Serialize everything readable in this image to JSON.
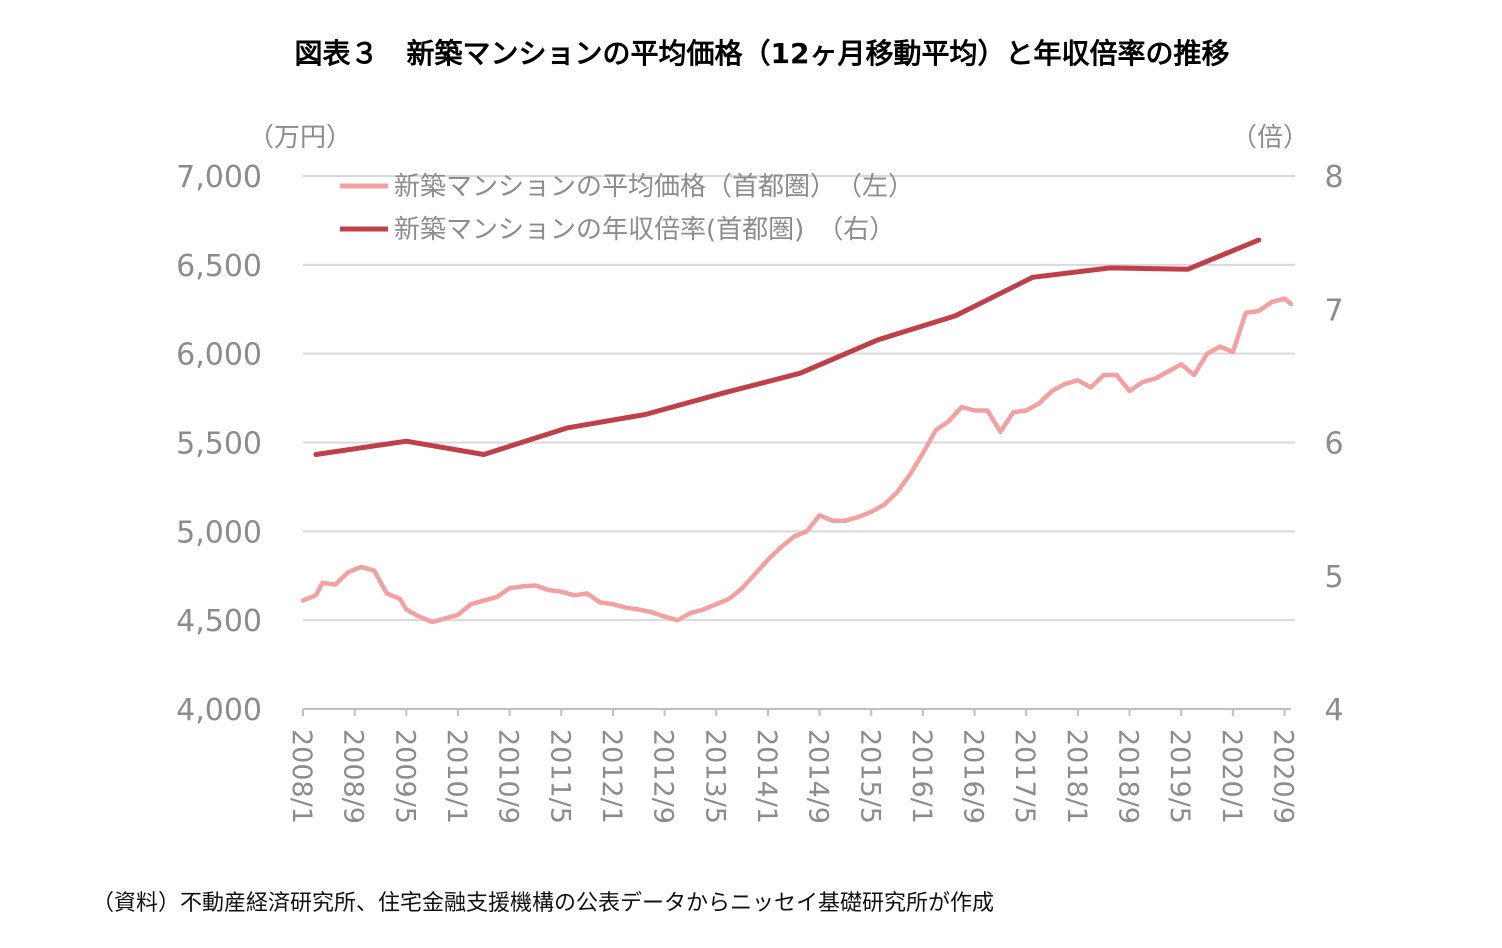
{
  "chart_data": {
    "type": "line",
    "title": "図表３　新築マンションの平均価格（12ヶ月移動平均）と年収倍率の推移",
    "left_unit": "（万円）",
    "right_unit": "（倍）",
    "ylim_left": [
      4000,
      7000
    ],
    "ylim_right": [
      4,
      8
    ],
    "yticks_left": [
      "4,000",
      "4,500",
      "5,000",
      "5,500",
      "6,000",
      "6,500",
      "7,000"
    ],
    "yticks_right": [
      "4",
      "5",
      "6",
      "7",
      "8"
    ],
    "x_range": [
      "2008/1",
      "2020/10"
    ],
    "xticks": [
      "2008/1",
      "2008/9",
      "2009/5",
      "2010/1",
      "2010/9",
      "2011/5",
      "2012/1",
      "2012/9",
      "2013/5",
      "2014/1",
      "2014/9",
      "2015/5",
      "2016/1",
      "2016/9",
      "2017/5",
      "2018/1",
      "2018/9",
      "2019/5",
      "2020/1",
      "2020/9"
    ],
    "grid": true,
    "legend_position": "top-left",
    "colors": {
      "price": "#f2a0a0",
      "ratio": "#c0404a"
    },
    "series": [
      {
        "name": "新築マンションの平均価格（首都圏）　（左）",
        "axis": "left",
        "x": [
          "2008/1",
          "2008/3",
          "2008/4",
          "2008/6",
          "2008/8",
          "2008/10",
          "2008/12",
          "2009/2",
          "2009/4",
          "2009/5",
          "2009/7",
          "2009/9",
          "2009/11",
          "2010/1",
          "2010/3",
          "2010/5",
          "2010/7",
          "2010/9",
          "2010/11",
          "2011/1",
          "2011/3",
          "2011/5",
          "2011/7",
          "2011/9",
          "2011/11",
          "2012/1",
          "2012/3",
          "2012/5",
          "2012/7",
          "2012/9",
          "2012/11",
          "2013/1",
          "2013/3",
          "2013/5",
          "2013/7",
          "2013/9",
          "2013/11",
          "2014/1",
          "2014/3",
          "2014/5",
          "2014/7",
          "2014/9",
          "2014/11",
          "2015/1",
          "2015/3",
          "2015/5",
          "2015/7",
          "2015/9",
          "2015/11",
          "2016/1",
          "2016/3",
          "2016/5",
          "2016/7",
          "2016/9",
          "2016/11",
          "2017/1",
          "2017/3",
          "2017/5",
          "2017/7",
          "2017/9",
          "2017/11",
          "2018/1",
          "2018/3",
          "2018/5",
          "2018/7",
          "2018/9",
          "2018/11",
          "2019/1",
          "2019/3",
          "2019/5",
          "2019/7",
          "2019/9",
          "2019/11",
          "2020/1",
          "2020/3",
          "2020/5",
          "2020/7",
          "2020/9",
          "2020/10"
        ],
        "values": [
          4610,
          4640,
          4710,
          4700,
          4770,
          4800,
          4780,
          4650,
          4620,
          4560,
          4520,
          4490,
          4510,
          4530,
          4590,
          4610,
          4630,
          4680,
          4690,
          4695,
          4670,
          4660,
          4640,
          4650,
          4600,
          4590,
          4570,
          4560,
          4545,
          4520,
          4500,
          4540,
          4560,
          4590,
          4620,
          4680,
          4760,
          4840,
          4910,
          4970,
          5000,
          5090,
          5060,
          5060,
          5080,
          5110,
          5150,
          5220,
          5320,
          5440,
          5570,
          5620,
          5700,
          5680,
          5680,
          5560,
          5670,
          5680,
          5720,
          5790,
          5830,
          5850,
          5810,
          5880,
          5880,
          5790,
          5840,
          5860,
          5900,
          5940,
          5880,
          6000,
          6040,
          6010,
          6230,
          6240,
          6290,
          6310,
          6280
        ]
      },
      {
        "name": "新築マンションの年収倍率(首都圏)　（右）",
        "axis": "right",
        "x": [
          "2008/3",
          "2009/5",
          "2010/5",
          "2011/6",
          "2012/6",
          "2013/6",
          "2014/6",
          "2015/6",
          "2016/6",
          "2017/6",
          "2018/6",
          "2019/6",
          "2020/5"
        ],
        "values": [
          5.91,
          6.01,
          5.91,
          6.11,
          6.21,
          6.37,
          6.52,
          6.77,
          6.95,
          7.24,
          7.31,
          7.3,
          7.52
        ]
      }
    ]
  },
  "source": "（資料）不動産経済研究所、住宅金融支援機構の公表データからニッセイ基礎研究所が作成"
}
